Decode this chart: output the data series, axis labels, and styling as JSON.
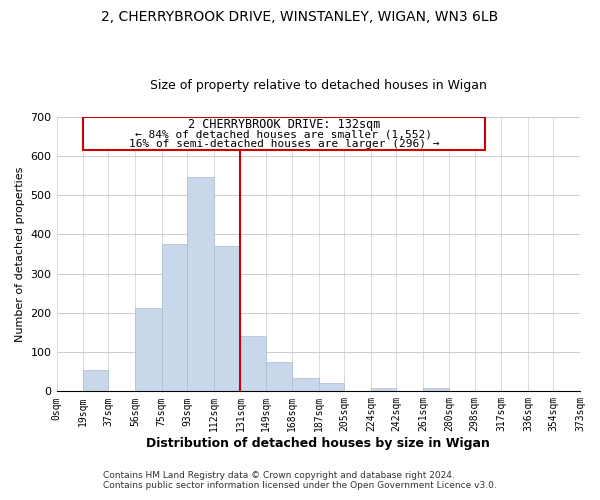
{
  "title": "2, CHERRYBROOK DRIVE, WINSTANLEY, WIGAN, WN3 6LB",
  "subtitle": "Size of property relative to detached houses in Wigan",
  "xlabel": "Distribution of detached houses by size in Wigan",
  "ylabel": "Number of detached properties",
  "footer_line1": "Contains HM Land Registry data © Crown copyright and database right 2024.",
  "footer_line2": "Contains public sector information licensed under the Open Government Licence v3.0.",
  "bar_color": "#c8d8ea",
  "bar_edge_color": "#aabbcc",
  "background_color": "#ffffff",
  "grid_color": "#cccccc",
  "annotation_text_line1": "2 CHERRYBROOK DRIVE: 132sqm",
  "annotation_text_line2": "← 84% of detached houses are smaller (1,552)",
  "annotation_text_line3": "16% of semi-detached houses are larger (296) →",
  "annotation_box_edge_color": "#cc0000",
  "red_line_color": "#cc0000",
  "red_line_x": 131,
  "tick_labels": [
    "0sqm",
    "19sqm",
    "37sqm",
    "56sqm",
    "75sqm",
    "93sqm",
    "112sqm",
    "131sqm",
    "149sqm",
    "168sqm",
    "187sqm",
    "205sqm",
    "224sqm",
    "242sqm",
    "261sqm",
    "280sqm",
    "298sqm",
    "317sqm",
    "336sqm",
    "354sqm",
    "373sqm"
  ],
  "bin_edges": [
    0,
    19,
    37,
    56,
    75,
    93,
    112,
    131,
    149,
    168,
    187,
    205,
    224,
    242,
    261,
    280,
    298,
    317,
    336,
    354,
    373
  ],
  "bar_heights": [
    0,
    55,
    0,
    213,
    375,
    547,
    370,
    142,
    76,
    33,
    20,
    0,
    8,
    0,
    8,
    0,
    0,
    0,
    0,
    0
  ],
  "ylim": [
    0,
    700
  ],
  "yticks": [
    0,
    100,
    200,
    300,
    400,
    500,
    600,
    700
  ],
  "title_fontsize": 10,
  "subtitle_fontsize": 9,
  "ylabel_fontsize": 8,
  "xlabel_fontsize": 9,
  "tick_fontsize": 7,
  "footer_fontsize": 6.5
}
